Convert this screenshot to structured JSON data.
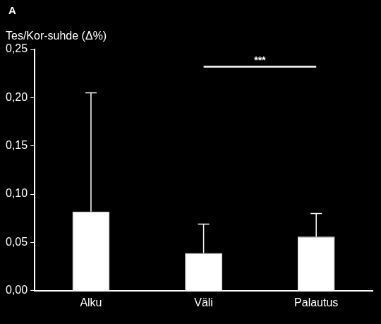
{
  "chart_data": {
    "type": "bar",
    "title": "A",
    "y_label": "Tes/Kor-suhde (Δ%)",
    "categories": [
      "Alku",
      "Väli",
      "Palautus"
    ],
    "values": [
      0.082,
      0.039,
      0.056
    ],
    "errors": [
      0.123,
      0.03,
      0.024
    ],
    "color": "#ffffff",
    "ylim": [
      0,
      0.25
    ],
    "yticks": [
      {
        "value": 0,
        "label": "0,00"
      },
      {
        "value": 0.05,
        "label": "0,05"
      },
      {
        "value": 0.1,
        "label": "0,10"
      },
      {
        "value": 0.15,
        "label": "0,15"
      },
      {
        "value": 0.2,
        "label": "0,20"
      },
      {
        "value": 0.25,
        "label": "0,25"
      }
    ],
    "grid": false,
    "annotations": [
      {
        "text": "***",
        "between": [
          "Väli",
          "Palautus"
        ],
        "y": 0.232
      }
    ]
  }
}
